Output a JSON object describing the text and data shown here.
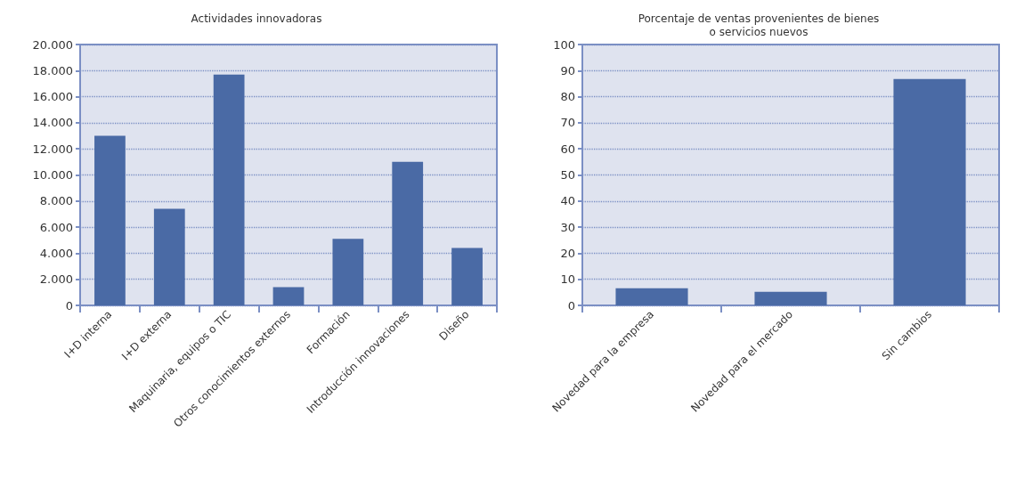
{
  "chart_data": [
    {
      "type": "bar",
      "title": "Actividades innovadoras",
      "categories": [
        "I+D interna",
        "I+D externa",
        "Maquinaria, equipos o TIC",
        "Otros conocimientos externos",
        "Formación",
        "Introducción innovaciones",
        "Diseño"
      ],
      "values": [
        13000,
        7400,
        17700,
        1400,
        5100,
        11000,
        4400
      ],
      "color": "#4a6aa5",
      "ylim": [
        0,
        20000
      ],
      "yticks": [
        {
          "value": 0,
          "label": "0"
        },
        {
          "value": 2000,
          "label": "2.000"
        },
        {
          "value": 4000,
          "label": "4.000"
        },
        {
          "value": 6000,
          "label": "6.000"
        },
        {
          "value": 8000,
          "label": "8.000"
        },
        {
          "value": 10000,
          "label": "10.000"
        },
        {
          "value": 12000,
          "label": "12.000"
        },
        {
          "value": 14000,
          "label": "14.000"
        },
        {
          "value": 16000,
          "label": "16.000"
        },
        {
          "value": 18000,
          "label": "18.000"
        },
        {
          "value": 20000,
          "label": "20.000"
        }
      ],
      "grid": "y"
    },
    {
      "type": "bar",
      "title": "Porcentaje de ventas provenientes de bienes\no servicios nuevos",
      "categories": [
        "Novedad para la empresa",
        "Novedad para el mercado",
        "Sin cambios"
      ],
      "values": [
        6.6,
        5.2,
        86.8
      ],
      "color": "#4a6aa5",
      "ylim": [
        0,
        100
      ],
      "yticks": [
        0,
        10,
        20,
        30,
        40,
        50,
        60,
        70,
        80,
        90,
        100
      ],
      "grid": "y"
    }
  ]
}
